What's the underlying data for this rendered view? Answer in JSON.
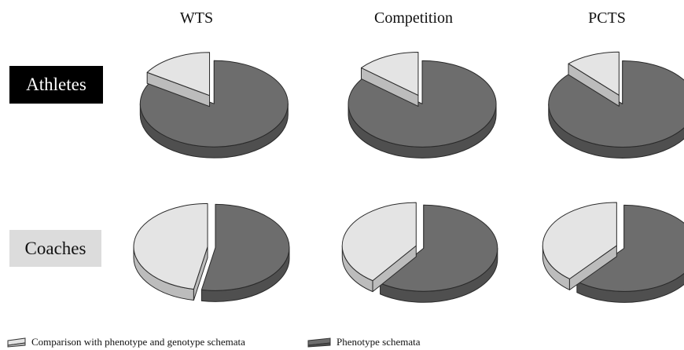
{
  "chart_data": {
    "type": "pie",
    "columns": [
      "WTS",
      "Competition",
      "PCTS"
    ],
    "rows": [
      "Athletes",
      "Coaches"
    ],
    "series": [
      {
        "name": "Comparison with phenotype and genotype schemata",
        "color": "#e4e4e4"
      },
      {
        "name": "Phenotype schemata",
        "color": "#6d6d6d"
      }
    ],
    "panels": [
      {
        "row": "Athletes",
        "column": "WTS",
        "values": [
          0.16,
          0.84
        ]
      },
      {
        "row": "Athletes",
        "column": "Competition",
        "values": [
          0.14,
          0.86
        ]
      },
      {
        "row": "Athletes",
        "column": "PCTS",
        "values": [
          0.12,
          0.88
        ]
      },
      {
        "row": "Coaches",
        "column": "WTS",
        "values": [
          0.47,
          0.53
        ]
      },
      {
        "row": "Coaches",
        "column": "Competition",
        "values": [
          0.4,
          0.6
        ]
      },
      {
        "row": "Coaches",
        "column": "PCTS",
        "values": [
          0.39,
          0.61
        ]
      }
    ]
  }
}
